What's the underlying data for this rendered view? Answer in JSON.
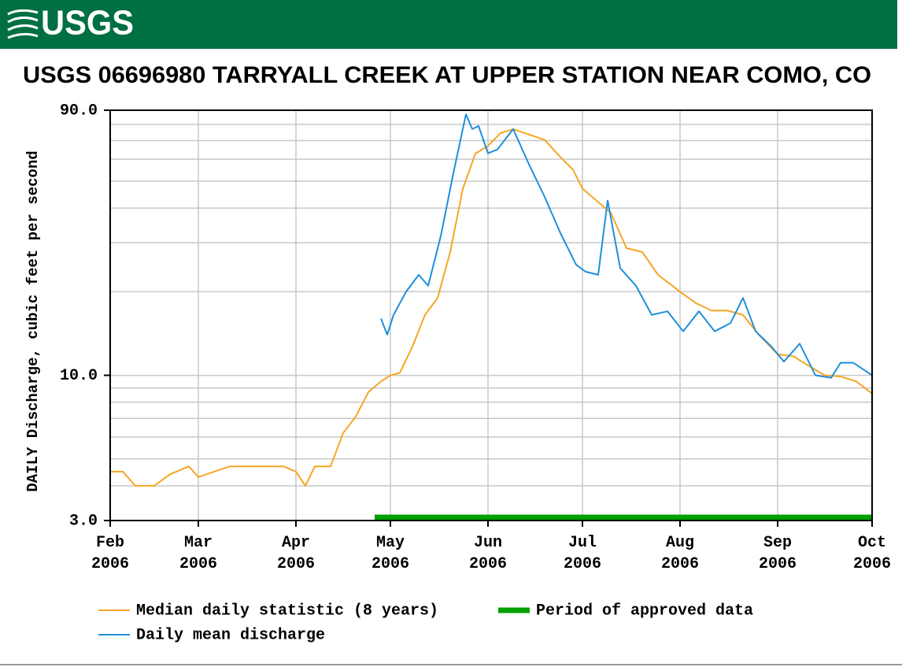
{
  "header": {
    "logo": "USGS"
  },
  "chart_data": {
    "type": "line",
    "title": "USGS 06696980 TARRYALL CREEK AT UPPER STATION NEAR COMO, CO",
    "y_label": "DAILY Discharge, cubic feet per second",
    "log_scale": true,
    "grid": true,
    "ylim": [
      3,
      90
    ],
    "yticks": [
      {
        "value": 3,
        "label": "3.0"
      },
      {
        "value": 10,
        "label": "10.0"
      },
      {
        "value": 90,
        "label": "90.0"
      }
    ],
    "minor_yticks": [
      4,
      5,
      6,
      7,
      8,
      9,
      20,
      30,
      40,
      50,
      60,
      70,
      80
    ],
    "xlim": [
      "2006-02-01",
      "2006-10-01"
    ],
    "xticks": [
      {
        "value": "2006-02-01",
        "label": "Feb 2006"
      },
      {
        "value": "2006-03-01",
        "label": "Mar 2006"
      },
      {
        "value": "2006-04-01",
        "label": "Apr 2006"
      },
      {
        "value": "2006-05-01",
        "label": "May 2006"
      },
      {
        "value": "2006-06-01",
        "label": "Jun 2006"
      },
      {
        "value": "2006-07-01",
        "label": "Jul 2006"
      },
      {
        "value": "2006-08-01",
        "label": "Aug 2006"
      },
      {
        "value": "2006-09-01",
        "label": "Sep 2006"
      },
      {
        "value": "2006-10-01",
        "label": "Oct 2006"
      }
    ],
    "series": [
      {
        "name": "Median daily statistic (8 years)",
        "color": "#f5a623",
        "x": [
          "2006-02-01",
          "2006-02-05",
          "2006-02-09",
          "2006-02-15",
          "2006-02-20",
          "2006-02-26",
          "2006-03-01",
          "2006-03-06",
          "2006-03-11",
          "2006-03-21",
          "2006-03-28",
          "2006-04-01",
          "2006-04-04",
          "2006-04-07",
          "2006-04-12",
          "2006-04-16",
          "2006-04-20",
          "2006-04-24",
          "2006-04-28",
          "2006-05-01",
          "2006-05-04",
          "2006-05-08",
          "2006-05-12",
          "2006-05-16",
          "2006-05-20",
          "2006-05-24",
          "2006-05-28",
          "2006-06-01",
          "2006-06-05",
          "2006-06-09",
          "2006-06-14",
          "2006-06-19",
          "2006-06-24",
          "2006-06-28",
          "2006-07-01",
          "2006-07-05",
          "2006-07-10",
          "2006-07-15",
          "2006-07-20",
          "2006-07-25",
          "2006-08-01",
          "2006-08-06",
          "2006-08-11",
          "2006-08-16",
          "2006-08-21",
          "2006-08-26",
          "2006-09-01",
          "2006-09-06",
          "2006-09-11",
          "2006-09-16",
          "2006-09-21",
          "2006-09-26",
          "2006-10-01"
        ],
        "values": [
          4.5,
          4.5,
          4.0,
          4.0,
          4.4,
          4.7,
          4.3,
          4.5,
          4.7,
          4.7,
          4.7,
          4.5,
          4.0,
          4.7,
          4.7,
          6.2,
          7.1,
          8.7,
          9.5,
          10,
          10.2,
          12.7,
          16.5,
          19,
          27.8,
          46.9,
          62.8,
          67,
          74.5,
          77,
          73.6,
          70.4,
          61,
          55,
          47,
          43,
          38.5,
          28.7,
          27.8,
          23,
          20,
          18.2,
          17.1,
          17.1,
          16.5,
          14,
          11.9,
          11.7,
          10.8,
          10,
          9.9,
          9.5,
          8.6
        ]
      },
      {
        "name": "Daily mean discharge",
        "color": "#1f8fdb",
        "x": [
          "2006-04-28",
          "2006-04-30",
          "2006-05-02",
          "2006-05-06",
          "2006-05-10",
          "2006-05-13",
          "2006-05-17",
          "2006-05-21",
          "2006-05-25",
          "2006-05-27",
          "2006-05-29",
          "2006-06-01",
          "2006-06-04",
          "2006-06-09",
          "2006-06-14",
          "2006-06-19",
          "2006-06-24",
          "2006-06-29",
          "2006-07-02",
          "2006-07-06",
          "2006-07-09",
          "2006-07-13",
          "2006-07-18",
          "2006-07-23",
          "2006-07-28",
          "2006-08-02",
          "2006-08-07",
          "2006-08-12",
          "2006-08-17",
          "2006-08-21",
          "2006-08-25",
          "2006-08-30",
          "2006-09-03",
          "2006-09-08",
          "2006-09-13",
          "2006-09-18",
          "2006-09-21",
          "2006-09-25",
          "2006-10-01"
        ],
        "values": [
          16,
          14,
          16.5,
          20,
          23,
          21,
          31.7,
          53.4,
          87,
          77,
          79,
          63,
          65,
          77,
          57.5,
          43.9,
          32.5,
          25,
          23.6,
          23,
          42.6,
          24.3,
          21,
          16.5,
          17,
          14.4,
          17,
          14.4,
          15.4,
          19,
          14.4,
          12.7,
          11.2,
          13,
          10,
          9.8,
          11.1,
          11.1,
          10
        ]
      }
    ],
    "approved_period": {
      "name": "Period of approved data",
      "color": "#00a000",
      "range": [
        "2006-04-26",
        "2006-10-01"
      ]
    }
  }
}
